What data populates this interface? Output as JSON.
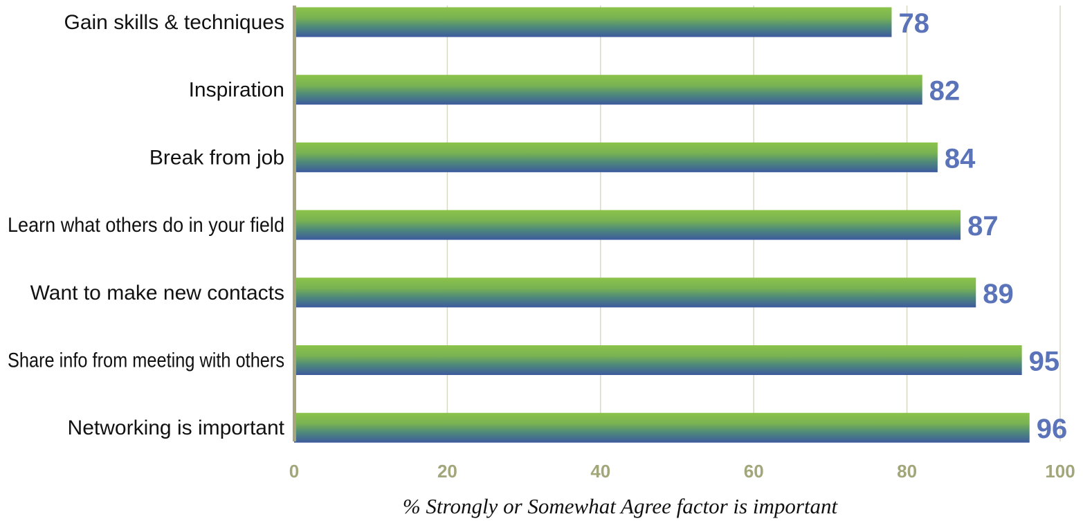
{
  "chart_data": {
    "type": "bar",
    "orientation": "horizontal",
    "categories": [
      "Gain skills & techniques",
      "Inspiration",
      "Break from job",
      "Learn what others do in your field",
      "Want to make new contacts",
      "Share info from meeting with others",
      "Networking is important"
    ],
    "values": [
      78,
      82,
      84,
      87,
      89,
      95,
      96
    ],
    "xlabel": "% Strongly or Somewhat Agree factor is important",
    "ylabel": "",
    "xlim": [
      0,
      100
    ],
    "xticks": [
      "0",
      "20",
      "40",
      "60",
      "80",
      "100"
    ],
    "grid": true,
    "legend": "none"
  },
  "colors": {
    "bar_top": "#8bc34a",
    "bar_bottom": "#3d5a9e",
    "value_label": "#5b73b8",
    "tick_label": "#a3a67a",
    "axis_line": "#a6a57c",
    "grid": "#d9d9c3"
  }
}
